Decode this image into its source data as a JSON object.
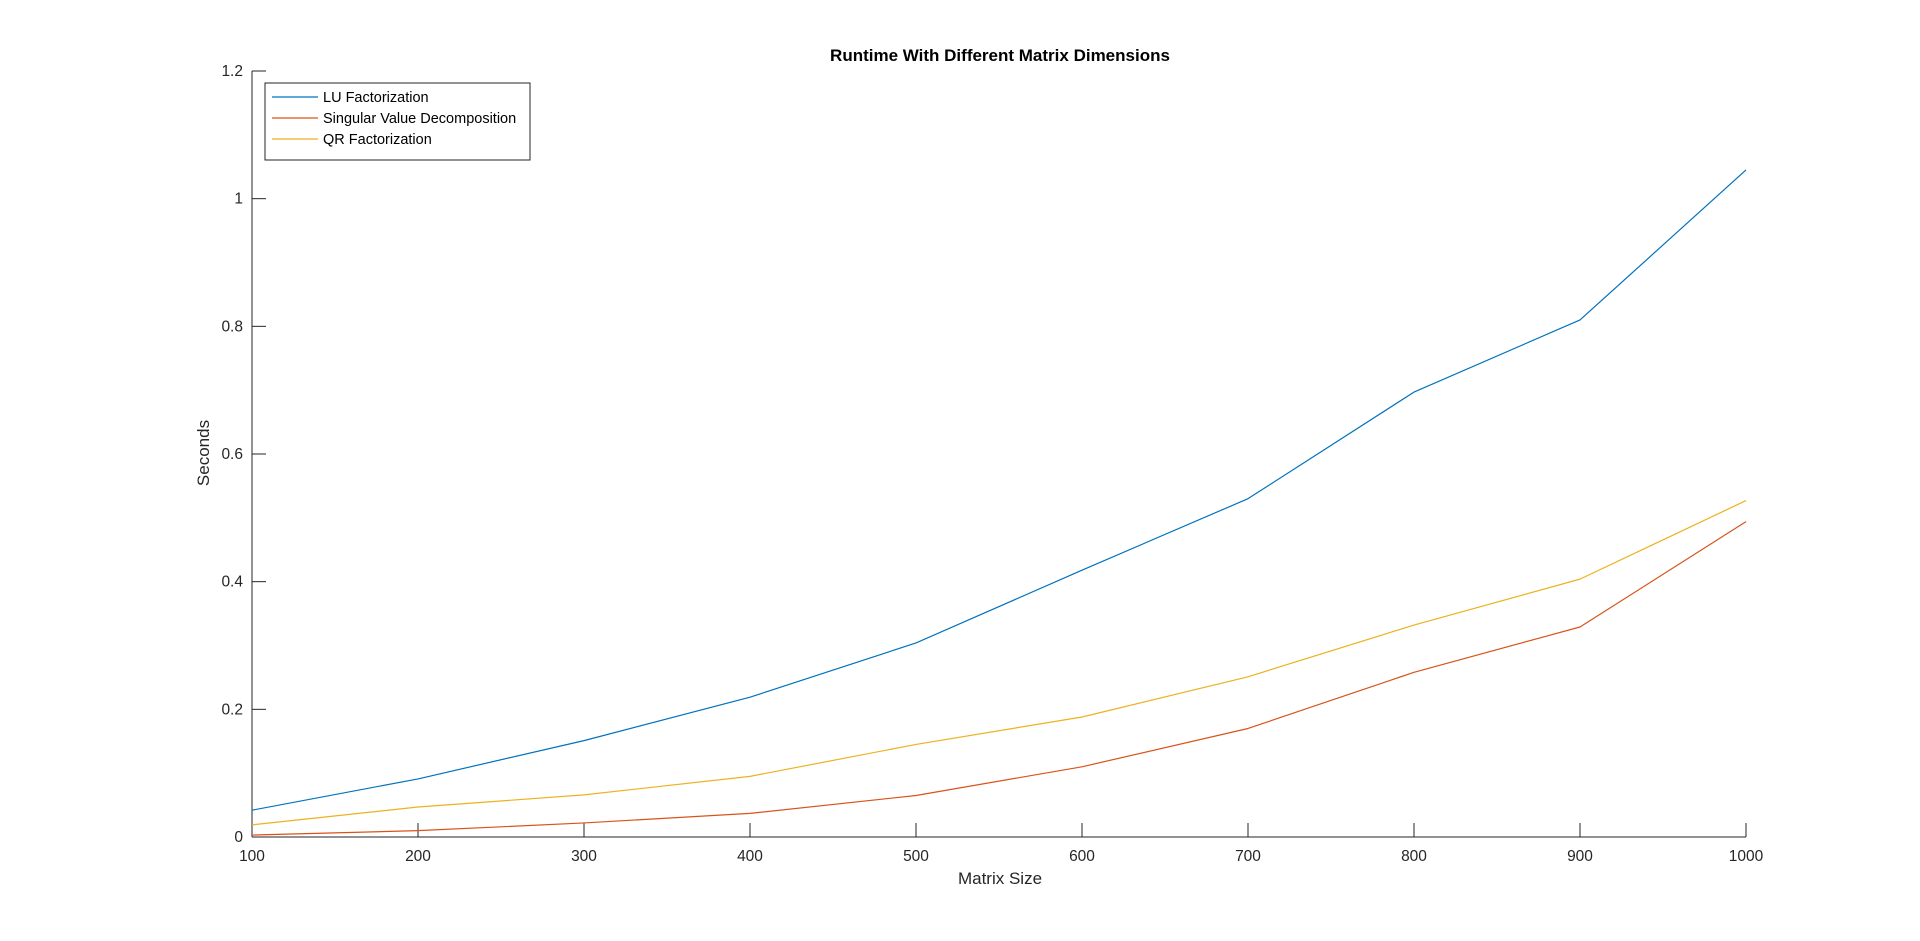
{
  "chart_data": {
    "type": "line",
    "title": "Runtime With Different Matrix Dimensions",
    "xlabel": "Matrix Size",
    "ylabel": "Seconds",
    "x": [
      100,
      200,
      300,
      400,
      500,
      600,
      700,
      800,
      900,
      1000
    ],
    "xlim": [
      100,
      1000
    ],
    "ylim": [
      0,
      1.2
    ],
    "xticks": [
      "100",
      "200",
      "300",
      "400",
      "500",
      "600",
      "700",
      "800",
      "900",
      "1000"
    ],
    "yticks": [
      "0",
      "0.2",
      "0.4",
      "0.6",
      "0.8",
      "1",
      "1.2"
    ],
    "grid": false,
    "legend_position": "top-left",
    "series": [
      {
        "name": "LU Factorization",
        "color": "#0072BD",
        "values": [
          0.042,
          0.091,
          0.151,
          0.219,
          0.304,
          0.418,
          0.53,
          0.697,
          0.81,
          1.045
        ]
      },
      {
        "name": "Singular Value Decomposition",
        "color": "#D95319",
        "values": [
          0.003,
          0.01,
          0.022,
          0.037,
          0.065,
          0.11,
          0.17,
          0.258,
          0.329,
          0.494
        ]
      },
      {
        "name": "QR Factorization",
        "color": "#EDB120",
        "values": [
          0.019,
          0.047,
          0.066,
          0.095,
          0.145,
          0.188,
          0.251,
          0.332,
          0.404,
          0.527
        ]
      }
    ]
  }
}
